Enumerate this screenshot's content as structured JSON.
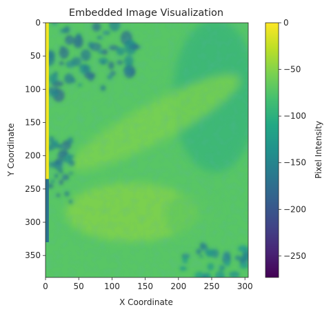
{
  "chart_data": {
    "type": "heatmap",
    "title": "Embedded Image Visualization",
    "xlabel": "X Coordinate",
    "ylabel": "Y Coordinate",
    "xlim": [
      0,
      305
    ],
    "ylim": [
      0,
      383
    ],
    "y_axis_inverted": true,
    "xticks": [
      0,
      50,
      100,
      150,
      200,
      250,
      300
    ],
    "yticks": [
      0,
      50,
      100,
      150,
      200,
      250,
      300,
      350
    ],
    "grid": false,
    "legend": "none",
    "colorbar": {
      "label": "Pixel Intensity",
      "range": [
        -273,
        0
      ],
      "ticks": [
        0,
        -50,
        -100,
        -150,
        -200,
        -250
      ],
      "colormap": "viridis"
    },
    "regions": [
      {
        "name": "left-edge-strip",
        "x_range": [
          0,
          5
        ],
        "y_range": [
          0,
          235
        ],
        "value": -5
      },
      {
        "name": "left-edge-dark-strip",
        "x_range": [
          0,
          5
        ],
        "y_range": [
          235,
          330
        ],
        "value": -170
      },
      {
        "name": "top-left-dark-patches",
        "x_range": [
          5,
          140
        ],
        "y_range": [
          0,
          110
        ],
        "value": -160
      },
      {
        "name": "left-mid-dark-patches",
        "x_range": [
          5,
          40
        ],
        "y_range": [
          170,
          270
        ],
        "value": -160
      },
      {
        "name": "diagonal-bright-band",
        "x_range": [
          40,
          300
        ],
        "y_range": [
          60,
          240
        ],
        "value": -55
      },
      {
        "name": "lower-bright-region",
        "x_range": [
          40,
          240
        ],
        "y_range": [
          250,
          330
        ],
        "value": -50
      },
      {
        "name": "right-teal-region",
        "x_range": [
          190,
          305
        ],
        "y_range": [
          0,
          230
        ],
        "value": -95
      },
      {
        "name": "bottom-right-dark-patches",
        "x_range": [
          200,
          305
        ],
        "y_range": [
          330,
          383
        ],
        "value": -140
      }
    ]
  }
}
